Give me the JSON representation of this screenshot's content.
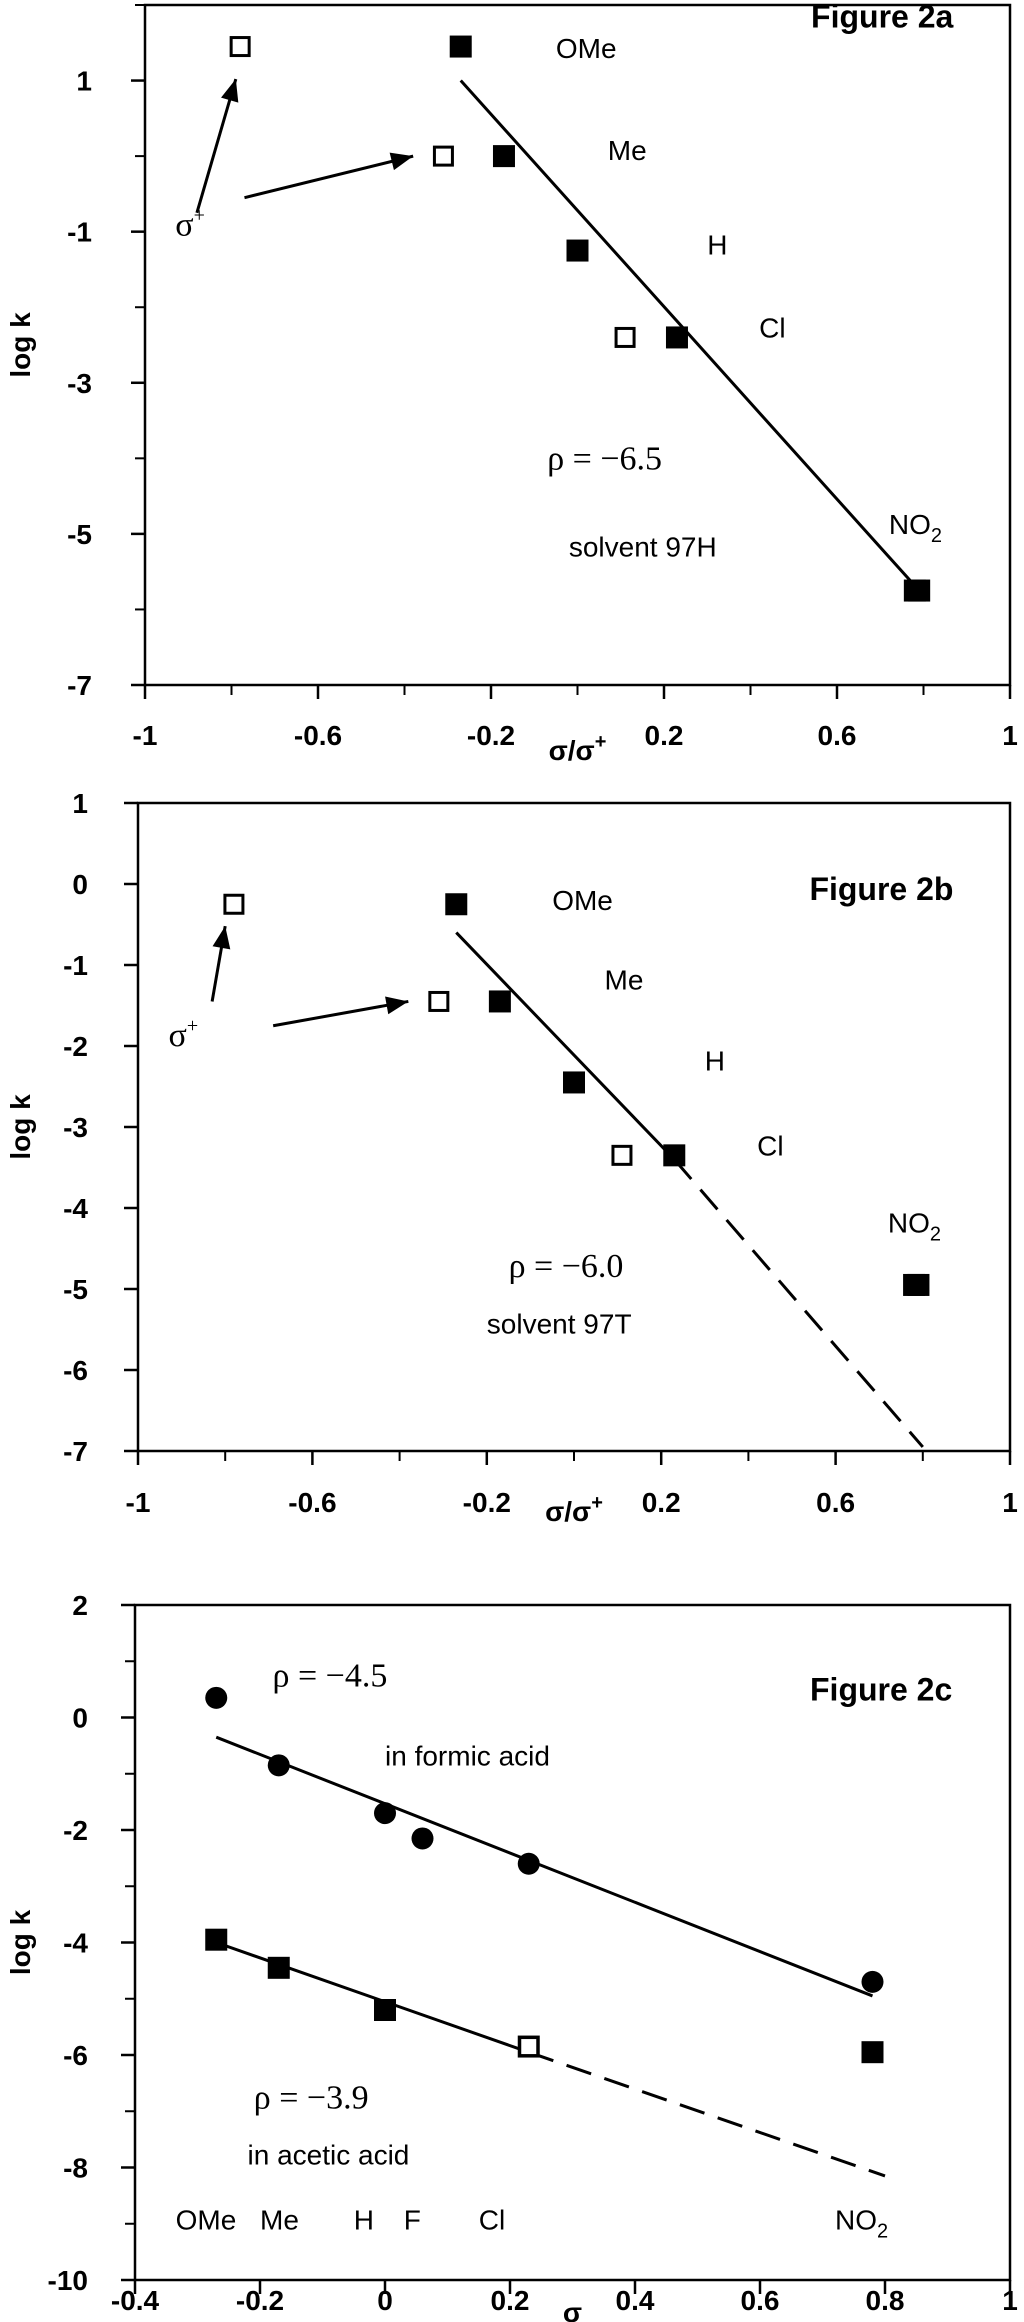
{
  "chart_data": [
    {
      "type": "scatter",
      "title": "Figure 2a",
      "xlabel": "σ/σ+",
      "ylabel": "log k",
      "xlim": [
        -1,
        1
      ],
      "ylim": [
        -7,
        2
      ],
      "xticks": [
        -1,
        -0.6,
        -0.2,
        0.2,
        0.6,
        1
      ],
      "yticks": [
        1,
        -1,
        -3,
        -5,
        -7
      ],
      "grid": false,
      "series": [
        {
          "marker": "filled-square",
          "x": [
            -0.27,
            -0.17,
            0.0,
            0.23,
            0.78,
            0.79
          ],
          "y": [
            1.45,
            0.0,
            -1.25,
            -2.4,
            -5.75,
            -5.75
          ]
        },
        {
          "marker": "open-square",
          "x": [
            -0.78,
            -0.31,
            0.11
          ],
          "y": [
            1.45,
            0.0,
            -2.4
          ]
        }
      ],
      "fits": [
        {
          "style": "solid",
          "x": [
            -0.27,
            0.79
          ],
          "y": [
            1.0,
            -5.75
          ]
        }
      ],
      "substituent_labels": [
        "OMe",
        "Me",
        "H",
        "Cl",
        "NO2"
      ],
      "annotations": {
        "sigma_plus": "σ+",
        "rho": "ρ = −6.5",
        "solvent": "solvent 97H"
      }
    },
    {
      "type": "scatter",
      "title": "Figure 2b",
      "xlabel": "σ/σ+",
      "ylabel": "log k",
      "xlim": [
        -1,
        1
      ],
      "ylim": [
        -7,
        1
      ],
      "xticks": [
        -1,
        -0.6,
        -0.2,
        0.2,
        0.6,
        1
      ],
      "yticks": [
        1,
        0,
        -1,
        -2,
        -3,
        -4,
        -5,
        -6,
        -7
      ],
      "grid": false,
      "series": [
        {
          "marker": "filled-square",
          "x": [
            -0.27,
            -0.17,
            0.0,
            0.23,
            0.78,
            0.79
          ],
          "y": [
            -0.25,
            -1.45,
            -2.45,
            -3.35,
            -4.95,
            -4.95
          ]
        },
        {
          "marker": "open-square",
          "x": [
            -0.78,
            -0.31,
            0.11
          ],
          "y": [
            -0.25,
            -1.45,
            -3.35
          ]
        }
      ],
      "fits": [
        {
          "style": "solid",
          "x": [
            -0.27,
            0.23
          ],
          "y": [
            -0.6,
            -3.4
          ]
        },
        {
          "style": "dashed",
          "x": [
            0.23,
            0.8
          ],
          "y": [
            -3.4,
            -6.95
          ]
        }
      ],
      "substituent_labels": [
        "OMe",
        "Me",
        "H",
        "Cl",
        "NO2"
      ],
      "annotations": {
        "sigma_plus": "σ+",
        "rho": "ρ = −6.0",
        "solvent": "solvent 97T"
      }
    },
    {
      "type": "scatter",
      "title": "Figure 2c",
      "xlabel": "σ",
      "ylabel": "log k",
      "xlim": [
        -0.4,
        1
      ],
      "ylim": [
        -10,
        2
      ],
      "xticks": [
        -0.4,
        -0.2,
        0,
        0.2,
        0.4,
        0.6,
        0.8,
        1
      ],
      "yticks": [
        2,
        0,
        -2,
        -4,
        -6,
        -8,
        -10
      ],
      "grid": false,
      "series": [
        {
          "marker": "filled-circle",
          "x": [
            -0.27,
            -0.17,
            0.0,
            0.06,
            0.23,
            0.78
          ],
          "y": [
            0.35,
            -0.85,
            -1.7,
            -2.15,
            -2.6,
            -4.7
          ]
        },
        {
          "marker": "filled-square",
          "x": [
            -0.27,
            -0.17,
            0.0,
            0.23,
            0.78
          ],
          "y": [
            -3.95,
            -4.45,
            -5.2,
            -5.85,
            -5.95
          ]
        },
        {
          "marker": "open-square",
          "x": [
            0.23
          ],
          "y": [
            -5.85
          ]
        }
      ],
      "fits": [
        {
          "style": "solid",
          "x": [
            -0.27,
            0.78
          ],
          "y": [
            -0.35,
            -4.95
          ]
        },
        {
          "style": "solid",
          "x": [
            -0.27,
            0.23
          ],
          "y": [
            -4.0,
            -5.95
          ]
        },
        {
          "style": "dashed",
          "x": [
            0.23,
            0.8
          ],
          "y": [
            -5.95,
            -8.15
          ]
        }
      ],
      "substituent_labels": [
        "OMe",
        "Me",
        "H",
        "F",
        "Cl",
        "NO2"
      ],
      "annotations": {
        "rho_formic": "ρ = −4.5",
        "formic": "in formic acid",
        "rho_acetic": "ρ = −3.9",
        "acetic": "in acetic acid"
      }
    }
  ]
}
